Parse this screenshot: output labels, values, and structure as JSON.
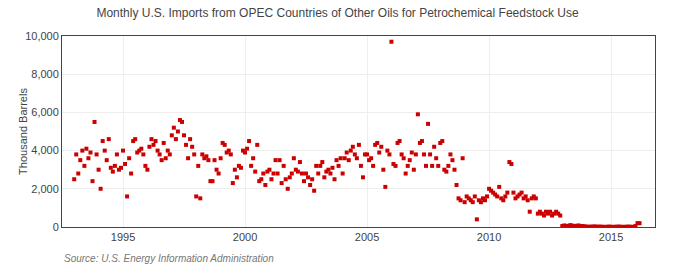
{
  "chart_data": {
    "type": "scatter",
    "title": "Monthly U.S. Imports from OPEC Countries of Other Oils for Petrochemical Feedstock Use",
    "ylabel": "Thousand Barrels",
    "annotations": [
      "Source: U.S. Energy Information Administration"
    ],
    "color": "#cc0000",
    "marker": "square",
    "grid": true,
    "xlim": [
      1992.5,
      2016.8
    ],
    "xticks": [
      1995,
      2000,
      2005,
      2010,
      2015
    ],
    "ylim": [
      0,
      10000
    ],
    "yticks": [
      0,
      {
        "value": 2000,
        "label": "2,000"
      },
      {
        "value": 4000,
        "label": "4,000"
      },
      {
        "value": 6000,
        "label": "6,000"
      },
      {
        "value": 8000,
        "label": "8,000"
      },
      {
        "value": 10000,
        "label": "10,000"
      }
    ],
    "x": [
      1993.0,
      1993.083,
      1993.167,
      1993.25,
      1993.333,
      1993.417,
      1993.5,
      1993.583,
      1993.667,
      1993.75,
      1993.833,
      1993.917,
      1994.0,
      1994.083,
      1994.167,
      1994.25,
      1994.333,
      1994.417,
      1994.5,
      1994.583,
      1994.667,
      1994.75,
      1994.833,
      1994.917,
      1995.0,
      1995.083,
      1995.167,
      1995.25,
      1995.333,
      1995.417,
      1995.5,
      1995.583,
      1995.667,
      1995.75,
      1995.833,
      1995.917,
      1996.0,
      1996.083,
      1996.167,
      1996.25,
      1996.333,
      1996.417,
      1996.5,
      1996.583,
      1996.667,
      1996.75,
      1996.833,
      1996.917,
      1997.0,
      1997.083,
      1997.167,
      1997.25,
      1997.333,
      1997.417,
      1997.5,
      1997.583,
      1997.667,
      1997.75,
      1997.833,
      1997.917,
      1998.0,
      1998.083,
      1998.167,
      1998.25,
      1998.333,
      1998.417,
      1998.5,
      1998.583,
      1998.667,
      1998.75,
      1998.833,
      1998.917,
      1999.0,
      1999.083,
      1999.167,
      1999.25,
      1999.333,
      1999.417,
      1999.5,
      1999.583,
      1999.667,
      1999.75,
      1999.833,
      1999.917,
      2000.0,
      2000.083,
      2000.167,
      2000.25,
      2000.333,
      2000.417,
      2000.5,
      2000.583,
      2000.667,
      2000.75,
      2000.833,
      2000.917,
      2001.0,
      2001.083,
      2001.167,
      2001.25,
      2001.333,
      2001.417,
      2001.5,
      2001.583,
      2001.667,
      2001.75,
      2001.833,
      2001.917,
      2002.0,
      2002.083,
      2002.167,
      2002.25,
      2002.333,
      2002.417,
      2002.5,
      2002.583,
      2002.667,
      2002.75,
      2002.833,
      2002.917,
      2003.0,
      2003.083,
      2003.167,
      2003.25,
      2003.333,
      2003.417,
      2003.5,
      2003.583,
      2003.667,
      2003.75,
      2003.833,
      2003.917,
      2004.0,
      2004.083,
      2004.167,
      2004.25,
      2004.333,
      2004.417,
      2004.5,
      2004.583,
      2004.667,
      2004.75,
      2004.833,
      2004.917,
      2005.0,
      2005.083,
      2005.167,
      2005.25,
      2005.333,
      2005.417,
      2005.5,
      2005.583,
      2005.667,
      2005.75,
      2005.833,
      2005.917,
      2006.0,
      2006.083,
      2006.167,
      2006.25,
      2006.333,
      2006.417,
      2006.5,
      2006.583,
      2006.667,
      2006.75,
      2006.833,
      2006.917,
      2007.0,
      2007.083,
      2007.167,
      2007.25,
      2007.333,
      2007.417,
      2007.5,
      2007.583,
      2007.667,
      2007.75,
      2007.833,
      2007.917,
      2008.0,
      2008.083,
      2008.167,
      2008.25,
      2008.333,
      2008.417,
      2008.5,
      2008.583,
      2008.667,
      2008.75,
      2008.833,
      2008.917,
      2009.0,
      2009.083,
      2009.167,
      2009.25,
      2009.333,
      2009.417,
      2009.5,
      2009.583,
      2009.667,
      2009.75,
      2009.833,
      2009.917,
      2010.0,
      2010.083,
      2010.167,
      2010.25,
      2010.333,
      2010.417,
      2010.5,
      2010.583,
      2010.667,
      2010.75,
      2010.833,
      2010.917,
      2011.0,
      2011.083,
      2011.167,
      2011.25,
      2011.333,
      2011.417,
      2011.5,
      2011.583,
      2011.667,
      2011.75,
      2011.833,
      2011.917,
      2012.0,
      2012.083,
      2012.167,
      2012.25,
      2012.333,
      2012.417,
      2012.5,
      2012.583,
      2012.667,
      2012.75,
      2012.833,
      2012.917,
      2013.0,
      2013.083,
      2013.167,
      2013.25,
      2013.333,
      2013.417,
      2013.5,
      2013.583,
      2013.667,
      2013.75,
      2013.833,
      2013.917,
      2014.0,
      2014.083,
      2014.167,
      2014.25,
      2014.333,
      2014.417,
      2014.5,
      2014.583,
      2014.667,
      2014.75,
      2014.833,
      2014.917,
      2015.0,
      2015.083,
      2015.167,
      2015.25,
      2015.333,
      2015.417,
      2015.5,
      2015.583,
      2015.667,
      2015.75,
      2015.833,
      2015.917,
      2016.0,
      2016.083,
      2016.167
    ],
    "values": [
      2500,
      3800,
      2800,
      3500,
      4000,
      3200,
      4100,
      3600,
      3900,
      2400,
      5500,
      3800,
      3000,
      2000,
      4500,
      4000,
      3500,
      4600,
      3100,
      2900,
      3200,
      3800,
      3000,
      3100,
      4000,
      3300,
      1600,
      3600,
      2800,
      4500,
      4600,
      3900,
      4000,
      4100,
      3800,
      3200,
      3000,
      4200,
      4600,
      4300,
      4500,
      4000,
      3800,
      3500,
      4400,
      3600,
      4000,
      3800,
      4800,
      5200,
      4600,
      5000,
      5600,
      5500,
      4800,
      4300,
      3600,
      4600,
      4200,
      3800,
      1600,
      3200,
      1500,
      3800,
      3600,
      3700,
      3500,
      2400,
      2400,
      3500,
      3000,
      2800,
      3600,
      4400,
      4300,
      3900,
      4000,
      3800,
      2300,
      3000,
      2600,
      3200,
      3100,
      4000,
      3900,
      4100,
      4500,
      3200,
      3600,
      2900,
      4300,
      2400,
      2500,
      2800,
      2200,
      2900,
      3000,
      2500,
      2800,
      3500,
      2800,
      3500,
      2300,
      3200,
      2500,
      2000,
      2600,
      2800,
      3600,
      3000,
      2900,
      3400,
      2800,
      2400,
      2800,
      2600,
      2200,
      2500,
      1900,
      3200,
      2800,
      3200,
      3400,
      2600,
      2900,
      3000,
      2800,
      3100,
      2500,
      3500,
      3200,
      3600,
      2800,
      3600,
      3900,
      3500,
      4000,
      4200,
      3800,
      3600,
      4300,
      3200,
      2600,
      3800,
      3800,
      3500,
      3600,
      3200,
      4300,
      4400,
      3900,
      4200,
      3000,
      2100,
      4000,
      3800,
      9700,
      3300,
      3200,
      4400,
      4500,
      3800,
      3600,
      2800,
      3200,
      3500,
      3900,
      3000,
      3800,
      5900,
      4400,
      4500,
      3800,
      3200,
      5400,
      3800,
      3200,
      4200,
      3600,
      3200,
      4400,
      4500,
      3000,
      2900,
      3200,
      3800,
      3500,
      3000,
      2200,
      1500,
      1400,
      3600,
      1300,
      1600,
      1500,
      1400,
      1300,
      1600,
      400,
      1400,
      1300,
      1500,
      1400,
      1600,
      2000,
      1900,
      1800,
      1700,
      1600,
      2100,
      1500,
      1400,
      1600,
      1800,
      3400,
      3300,
      1800,
      1500,
      1600,
      1700,
      1800,
      1500,
      1600,
      1400,
      800,
      1500,
      1600,
      1500,
      700,
      800,
      700,
      600,
      800,
      700,
      800,
      600,
      700,
      800,
      700,
      600,
      50,
      80,
      60,
      40,
      100,
      70,
      50,
      60,
      80,
      40,
      50,
      30,
      20,
      10,
      15,
      20,
      30,
      10,
      20,
      15,
      10,
      5,
      10,
      20,
      10,
      5,
      10,
      15,
      20,
      10,
      5,
      10,
      15,
      20,
      5,
      10,
      50,
      200,
      200
    ]
  }
}
